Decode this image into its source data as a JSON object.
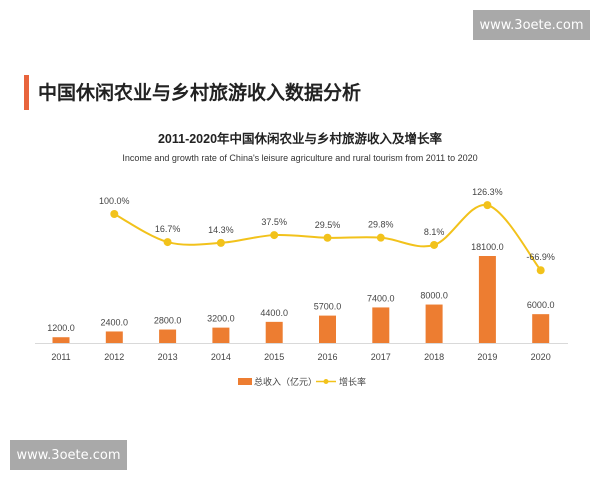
{
  "watermark": "www.3oete.com",
  "heading": "中国休闲农业与乡村旅游收入数据分析",
  "colors": {
    "bar": "#ed7d31",
    "line": "#f2c21b",
    "accent": "#e8643c"
  },
  "chart_data": {
    "type": "bar+line",
    "title": "2011-2020年中国休闲农业与乡村旅游收入及增长率",
    "subtitle": "Income and growth rate of China's leisure agriculture and rural tourism from 2011 to  2020",
    "categories": [
      "2011",
      "2012",
      "2013",
      "2014",
      "2015",
      "2016",
      "2017",
      "2018",
      "2019",
      "2020"
    ],
    "series": [
      {
        "name": "总收入（亿元）",
        "type": "bar",
        "values": [
          1200.0,
          2400.0,
          2800.0,
          3200.0,
          4400.0,
          5700.0,
          7400.0,
          8000.0,
          18100.0,
          6000.0
        ],
        "labels": [
          "1200.0",
          "2400.0",
          "2800.0",
          "3200.0",
          "4400.0",
          "5700.0",
          "7400.0",
          "8000.0",
          "18100.0",
          "6000.0"
        ]
      },
      {
        "name": "增长率",
        "type": "line",
        "values": [
          null,
          100.0,
          16.7,
          14.3,
          37.5,
          29.5,
          29.8,
          8.1,
          126.3,
          -66.9
        ],
        "labels": [
          "",
          "100.0%",
          "16.7%",
          "14.3%",
          "37.5%",
          "29.5%",
          "29.8%",
          "8.1%",
          "126.3%",
          "-66.9%"
        ]
      }
    ],
    "grid": false,
    "legend": "bottom"
  }
}
